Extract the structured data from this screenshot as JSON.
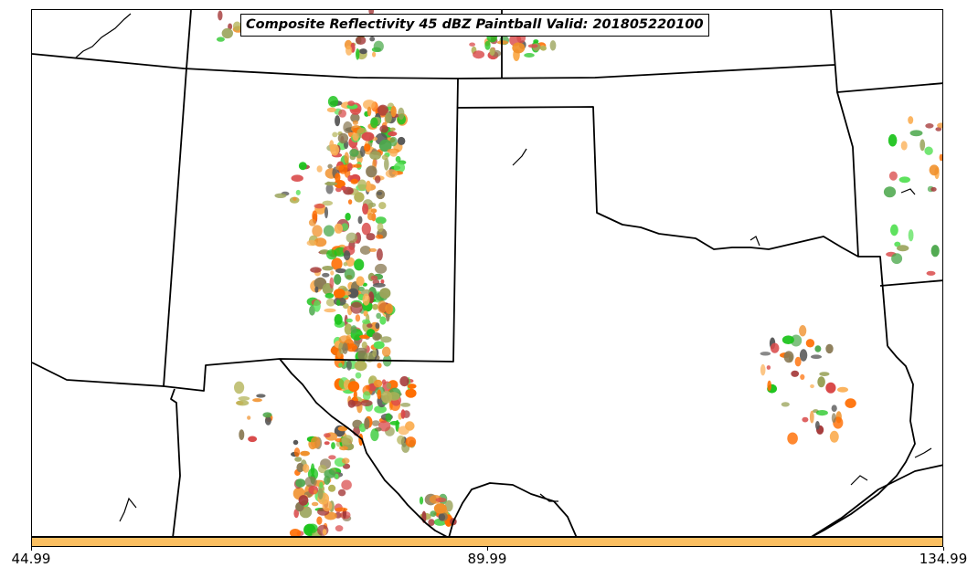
{
  "title": "Composite Reflectivity 45 dBZ Paintball Valid: 201805220100",
  "colorbar": {
    "color": "#fbbf61",
    "min": 44.99,
    "max": 134.99,
    "ticks": [
      {
        "value": 44.99,
        "label": "44.99"
      },
      {
        "value": 89.99,
        "label": "89.99"
      },
      {
        "value": 134.99,
        "label": "134.99"
      }
    ]
  },
  "map": {
    "background": "#ffffff",
    "boundary_color": "#000000",
    "regions_shown": [
      "New Mexico",
      "Texas",
      "Oklahoma",
      "Colorado",
      "Kansas",
      "Arizona",
      "Louisiana",
      "Arkansas",
      "Mexico"
    ]
  },
  "paintball_colors": [
    "#d94a4a",
    "#a53a3a",
    "#f0902a",
    "#fbae52",
    "#ff6d00",
    "#4ca84c",
    "#1dc41d",
    "#55e055",
    "#9aa35a",
    "#b4b45a",
    "#575757",
    "#8a7a55"
  ]
}
